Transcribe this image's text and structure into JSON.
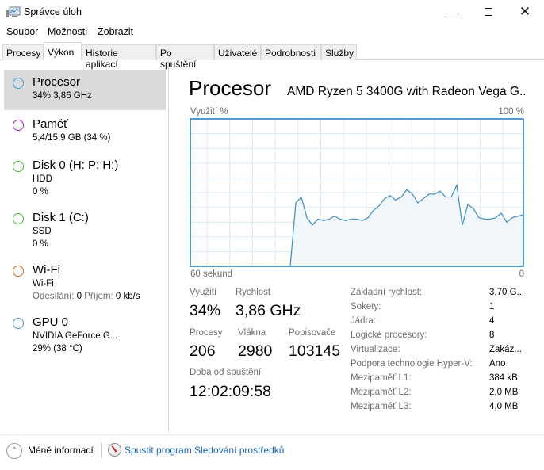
{
  "window": {
    "title": "Správce úloh",
    "icon": "task-manager-icon",
    "controls": [
      "minimize",
      "maximize",
      "close"
    ]
  },
  "menu": [
    "Soubor",
    "Možnosti",
    "Zobrazit"
  ],
  "tabs": [
    {
      "label": "Procesy"
    },
    {
      "label": "Výkon",
      "active": true
    },
    {
      "label": "Historie aplikací"
    },
    {
      "label": "Po spuštění"
    },
    {
      "label": "Uživatelé"
    },
    {
      "label": "Podrobnosti"
    },
    {
      "label": "Služby"
    }
  ],
  "sidebar": {
    "items": [
      {
        "name": "Procesor",
        "lines": [
          "34% 3,86 GHz"
        ],
        "color": "#4a9bd6",
        "selected": true
      },
      {
        "name": "Paměť",
        "lines": [
          "5,4/15,9 GB (34 %)"
        ],
        "color": "#9b2fae"
      },
      {
        "name": "Disk 0 (H: P: H:)",
        "lines": [
          "HDD",
          "0 %"
        ],
        "color": "#4cb53a"
      },
      {
        "name": "Disk 1 (C:)",
        "lines": [
          "SSD",
          "0 %"
        ],
        "color": "#4cb53a"
      },
      {
        "name": "Wi-Fi",
        "lines": [
          "Wi-Fi"
        ],
        "send_label": "Odesílání:",
        "send": "0",
        "recv_label": "Příjem:",
        "recv": "0 kb/s",
        "color": "#c8691c"
      },
      {
        "name": "GPU 0",
        "lines": [
          "NVIDIA GeForce G...",
          "29%  (38 °C)"
        ],
        "color": "#4a9bd6"
      }
    ]
  },
  "main": {
    "title": "Procesor",
    "model": "AMD Ryzen 5 3400G with Radeon Vega G...",
    "graph_label_left": "Využití %",
    "graph_label_right": "100 %",
    "graph_bottom_left": "60 sekund",
    "graph_bottom_right": "0",
    "stats": {
      "utilization_label": "Využití",
      "utilization": "34%",
      "speed_label": "Rychlost",
      "speed": "3,86 GHz",
      "processes_label": "Procesy",
      "processes": "206",
      "threads_label": "Vlákna",
      "threads": "2980",
      "handles_label": "Popisovače",
      "handles": "103145",
      "uptime_label": "Doba od spuštění",
      "uptime": "12:02:09:58"
    },
    "info": [
      {
        "k": "Základní rychlost:",
        "v": "3,70 G..."
      },
      {
        "k": "Sokety:",
        "v": "1"
      },
      {
        "k": "Jádra:",
        "v": "4"
      },
      {
        "k": "Logické procesory:",
        "v": "8"
      },
      {
        "k": "Virtualizace:",
        "v": "Zakáz..."
      },
      {
        "k": "Podpora technologie Hyper-V:",
        "v": "Ano"
      },
      {
        "k": "Mezipaměť L1:",
        "v": "384 kB"
      },
      {
        "k": "Mezipaměť L2:",
        "v": "2,0 MB"
      },
      {
        "k": "Mezipaměť L3:",
        "v": "4,0 MB"
      }
    ]
  },
  "chart_data": {
    "type": "area",
    "xlabel_left": "60 sekund",
    "xlabel_right": "0",
    "ylabel": "Využití %",
    "ymax_label": "100 %",
    "ylim": [
      0,
      100
    ],
    "xlim_seconds": [
      60,
      0
    ],
    "grid": true,
    "color": "#1f77b4",
    "values": [
      0,
      0,
      0,
      0,
      0,
      0,
      0,
      0,
      0,
      0,
      0,
      0,
      0,
      0,
      0,
      0,
      0,
      0,
      0,
      43,
      47,
      33,
      28,
      32,
      31,
      32,
      34,
      32,
      31,
      32,
      32,
      31,
      33,
      38,
      41,
      46,
      48,
      45,
      47,
      52,
      49,
      43,
      46,
      49,
      49,
      51,
      47,
      47,
      55,
      28,
      42,
      39,
      33,
      32,
      32,
      33,
      36,
      30,
      33,
      34,
      35
    ]
  },
  "footer": {
    "less_info": "Méně informací",
    "resmon_link": "Spustit program Sledování prostředků"
  }
}
